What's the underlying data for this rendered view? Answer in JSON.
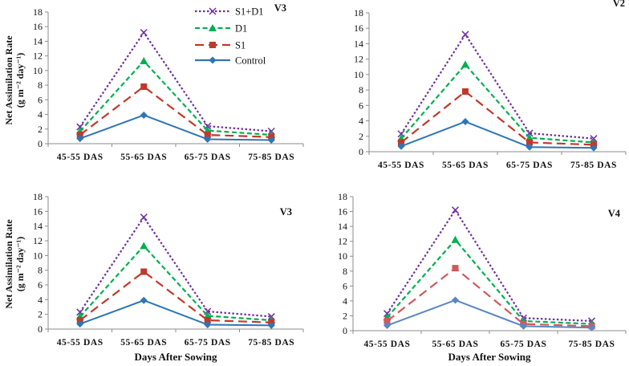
{
  "chart_data": [
    {
      "type": "line",
      "title": "V3",
      "ylabel": "Net Assimilation Rate",
      "ylabel_units": "(g m⁻² day⁻¹)",
      "xlabel": "",
      "ylim": [
        0,
        18
      ],
      "yticks": [
        0,
        2,
        4,
        6,
        8,
        10,
        12,
        14,
        16,
        18
      ],
      "categories": [
        "45-55 DAS",
        "55-65 DAS",
        "65-75 DAS",
        "75-85 DAS"
      ],
      "legend": "top-left",
      "series": [
        {
          "name": "S1+D1",
          "values": [
            2.3,
            15.2,
            2.4,
            1.7
          ]
        },
        {
          "name": "D1",
          "values": [
            1.7,
            11.3,
            1.8,
            1.2
          ]
        },
        {
          "name": "S1",
          "values": [
            1.2,
            7.8,
            1.2,
            0.9
          ]
        },
        {
          "name": "Control",
          "values": [
            0.7,
            3.9,
            0.6,
            0.5
          ]
        }
      ]
    },
    {
      "type": "line",
      "title": "V2",
      "ylabel": "",
      "xlabel": "",
      "ylim": [
        0,
        18
      ],
      "yticks": [
        0,
        2,
        4,
        6,
        8,
        10,
        12,
        14,
        16,
        18
      ],
      "categories": [
        "45-55 DAS",
        "55-65 DAS",
        "65-75 DAS",
        "75-85 DAS"
      ],
      "series": [
        {
          "name": "S1+D1",
          "values": [
            2.3,
            15.2,
            2.4,
            1.7
          ]
        },
        {
          "name": "D1",
          "values": [
            1.7,
            11.3,
            1.8,
            1.2
          ]
        },
        {
          "name": "S1",
          "values": [
            1.2,
            7.8,
            1.2,
            0.9
          ]
        },
        {
          "name": "Control",
          "values": [
            0.7,
            3.9,
            0.6,
            0.5
          ]
        }
      ]
    },
    {
      "type": "line",
      "title": "V3",
      "ylabel": "Net Assimilation Rate",
      "ylabel_units": "(g m⁻² day⁻¹)",
      "xlabel": "Days After Sowing",
      "ylim": [
        0,
        18
      ],
      "yticks": [
        0,
        2,
        4,
        6,
        8,
        10,
        12,
        14,
        16,
        18
      ],
      "categories": [
        "45-55 DAS",
        "55-65 DAS",
        "65-75 DAS",
        "75-85 DAS"
      ],
      "series": [
        {
          "name": "S1+D1",
          "values": [
            2.3,
            15.2,
            2.4,
            1.7
          ]
        },
        {
          "name": "D1",
          "values": [
            1.7,
            11.3,
            1.8,
            1.2
          ]
        },
        {
          "name": "S1",
          "values": [
            1.2,
            7.8,
            1.2,
            0.9
          ]
        },
        {
          "name": "Control",
          "values": [
            0.7,
            3.9,
            0.6,
            0.5
          ]
        }
      ]
    },
    {
      "type": "line",
      "title": "V4",
      "ylabel": "",
      "xlabel": "Days After Sowing",
      "ylim": [
        0,
        18
      ],
      "yticks": [
        0,
        2,
        4,
        6,
        8,
        10,
        12,
        14,
        16,
        18
      ],
      "categories": [
        "45-55 DAS",
        "55-65 DAS",
        "65-75 DAS",
        "75-85 DAS"
      ],
      "series": [
        {
          "name": "S1+D1",
          "values": [
            2.3,
            16.2,
            1.7,
            1.3
          ]
        },
        {
          "name": "D1",
          "values": [
            1.8,
            12.2,
            1.3,
            0.9
          ]
        },
        {
          "name": "S1",
          "values": [
            1.3,
            8.4,
            0.9,
            0.6
          ]
        },
        {
          "name": "Control",
          "values": [
            0.7,
            4.1,
            0.6,
            0.4
          ]
        }
      ]
    }
  ],
  "series_style": {
    "S1+D1": {
      "color": "#7030a0",
      "marker": "x-mark"
    },
    "D1": {
      "color": "#00b050",
      "marker": "triangle"
    },
    "S1": {
      "color": "#c0392b",
      "marker": "square"
    },
    "Control": {
      "color": "#2e75b6",
      "marker": "diamond"
    }
  },
  "panel4_style": {
    "S1": {
      "color": "#d05a5a"
    },
    "Control": {
      "color": "#5b86c4"
    }
  }
}
